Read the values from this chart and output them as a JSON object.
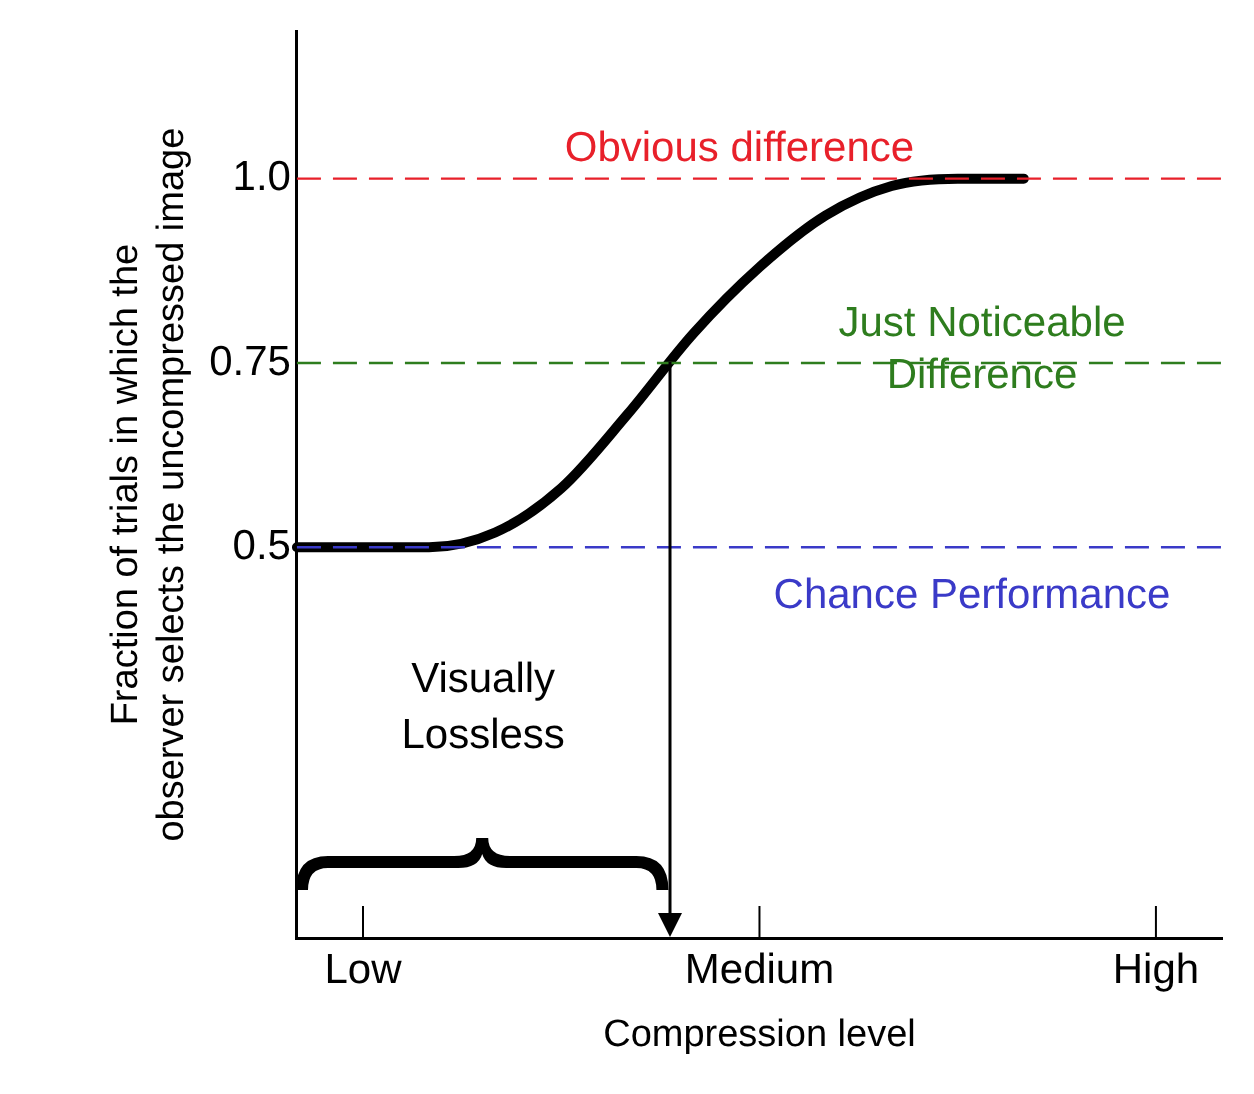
{
  "chart_data": {
    "type": "line",
    "xlabel": "Compression level",
    "ylabel": "Fraction of trials in which the observer selects the uncompressed image",
    "categories": [
      null,
      "Low",
      null,
      null,
      null,
      null,
      null,
      "Medium",
      null,
      null,
      null,
      null,
      null,
      "High",
      null
    ],
    "series": [
      {
        "color": "#000000",
        "values": [
          0.5,
          0.5,
          0.5,
          0.52,
          0.58,
          0.68,
          0.79,
          0.88,
          0.95,
          0.99,
          1.0,
          1.0,
          null,
          null,
          null
        ]
      }
    ],
    "ylim": [
      -0.03,
      1.2
    ],
    "yticks": [
      0.5,
      0.75,
      {
        "value": 1,
        "label": "1.0"
      }
    ],
    "ref_lines": [
      {
        "axis": "y",
        "value": 1,
        "label": "Obvious difference",
        "color": "#e8202a",
        "line_style": "dashed"
      },
      {
        "axis": "y",
        "value": 0.75,
        "label": "Just Noticeable Difference",
        "color": "#2e7d1e",
        "line_style": "dashed"
      },
      {
        "axis": "y",
        "value": 0.5,
        "label": "Chance Performance",
        "color": "#3a3ac8",
        "line_style": "dashed"
      }
    ],
    "annotations": [
      "Visually Lossless"
    ],
    "grid": false,
    "legend": false,
    "marker": "none",
    "line_style": "solid"
  }
}
